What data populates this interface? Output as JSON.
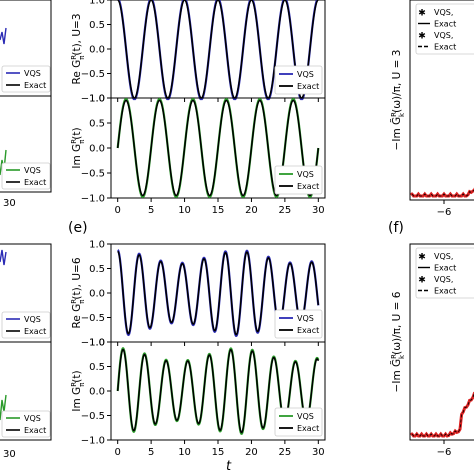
{
  "figure": {
    "panel_e_label": "(e)",
    "panel_f_label": "(f)",
    "shared_xlabel": "t"
  },
  "colors": {
    "vqs_re": "#2b2bb5",
    "vqs_im": "#2a9a2a",
    "exact": "#000000",
    "spectral_vqs_1": "#33cccc",
    "spectral_vqs_2": "#dd2222"
  },
  "chart_data": [
    {
      "id": "top-re",
      "type": "line",
      "ylabel_main": "Re G",
      "ylabel_sup": "R",
      "ylabel_sub": "π",
      "ylabel_rest": "(t), U=3",
      "xlim": [
        -1,
        31
      ],
      "ylim": [
        -1.0,
        1.0
      ],
      "yticks": [
        "1.0",
        "0.5",
        "0.0",
        "−0.5",
        "−1.0"
      ],
      "xticks": [],
      "legend": [
        "VQS",
        "Exact"
      ],
      "series": [
        {
          "name": "VQS",
          "color_key": "vqs_re",
          "omega": 1.2566,
          "amp": 1.0,
          "phase": 0.0
        },
        {
          "name": "Exact",
          "color_key": "exact",
          "omega": 1.2566,
          "amp": 1.0,
          "phase": 0.0
        }
      ]
    },
    {
      "id": "top-im",
      "type": "line",
      "ylabel_main": "Im G",
      "ylabel_sup": "R",
      "ylabel_sub": "π",
      "ylabel_rest": "(t)",
      "xlim": [
        -1,
        31
      ],
      "ylim": [
        -1.0,
        1.0
      ],
      "yticks": [
        "1.0",
        "0.5",
        "0.0",
        "−0.5",
        "−1.0"
      ],
      "xticks": [
        "0",
        "5",
        "10",
        "15",
        "20",
        "25",
        "30"
      ],
      "legend": [
        "VQS",
        "Exact"
      ],
      "series": [
        {
          "name": "VQS",
          "color_key": "vqs_im",
          "omega": 1.2566,
          "amp": 0.95,
          "phase": -1.5708
        },
        {
          "name": "Exact",
          "color_key": "exact",
          "omega": 1.2566,
          "amp": 0.95,
          "phase": -1.5708
        }
      ]
    },
    {
      "id": "bottom-re",
      "type": "line",
      "ylabel_main": "Re G",
      "ylabel_sup": "R",
      "ylabel_sub": "π",
      "ylabel_rest": "(t), U=6",
      "xlim": [
        -1,
        31
      ],
      "ylim": [
        -1.0,
        1.0
      ],
      "yticks": [
        "1.0",
        "0.5",
        "0.0",
        "−0.5",
        "−1.0"
      ],
      "xticks": [],
      "legend": [
        "VQS",
        "Exact"
      ],
      "series": [
        {
          "name": "VQS",
          "color_key": "vqs_re",
          "omega": 1.95,
          "amp": 0.85,
          "phase": 0.0,
          "beat": 0.3
        },
        {
          "name": "Exact",
          "color_key": "exact",
          "omega": 1.95,
          "amp": 0.85,
          "phase": 0.0,
          "beat": 0.3
        }
      ]
    },
    {
      "id": "bottom-im",
      "type": "line",
      "ylabel_main": "Im G",
      "ylabel_sup": "R",
      "ylabel_sub": "π",
      "ylabel_rest": "(t)",
      "xlim": [
        -1,
        31
      ],
      "ylim": [
        -1.0,
        1.0
      ],
      "yticks": [
        "1.0",
        "0.5",
        "0.0",
        "−0.5",
        "−1.0"
      ],
      "xticks": [
        "0",
        "5",
        "10",
        "15",
        "20",
        "25",
        "30"
      ],
      "legend": [
        "VQS",
        "Exact"
      ],
      "series": [
        {
          "name": "VQS",
          "color_key": "vqs_im",
          "omega": 1.95,
          "amp": 0.85,
          "phase": -1.5708,
          "beat": 0.3
        },
        {
          "name": "Exact",
          "color_key": "exact",
          "omega": 1.95,
          "amp": 0.85,
          "phase": -1.5708,
          "beat": 0.3
        }
      ]
    },
    {
      "id": "spectral-top",
      "type": "line",
      "ylabel_main": "−Im G̃",
      "ylabel_sup": "R",
      "ylabel_sub": "k",
      "ylabel_rest": "(ω)/π,  U = 3",
      "xticks": [
        "−6"
      ],
      "legend": [
        "VQS,",
        "Exact",
        "VQS,",
        "Exact"
      ]
    },
    {
      "id": "spectral-bottom",
      "type": "line",
      "ylabel_main": "−Im G̃",
      "ylabel_sup": "R",
      "ylabel_sub": "k",
      "ylabel_rest": "(ω)/π,  U = 6",
      "xticks": [
        "−6"
      ],
      "legend": [
        "VQS,",
        "Exact",
        "VQS,",
        "Exact"
      ]
    }
  ],
  "left_panels": {
    "xtick_top": "30",
    "xtick_bottom": "30",
    "legend_top_1": [
      "VQS",
      "Exact"
    ],
    "legend_top_2": [
      "VQS",
      "Exact"
    ],
    "legend_bottom_1": [
      "VQS",
      "Exact"
    ],
    "legend_bottom_2": [
      "VQS",
      "Exact"
    ]
  }
}
